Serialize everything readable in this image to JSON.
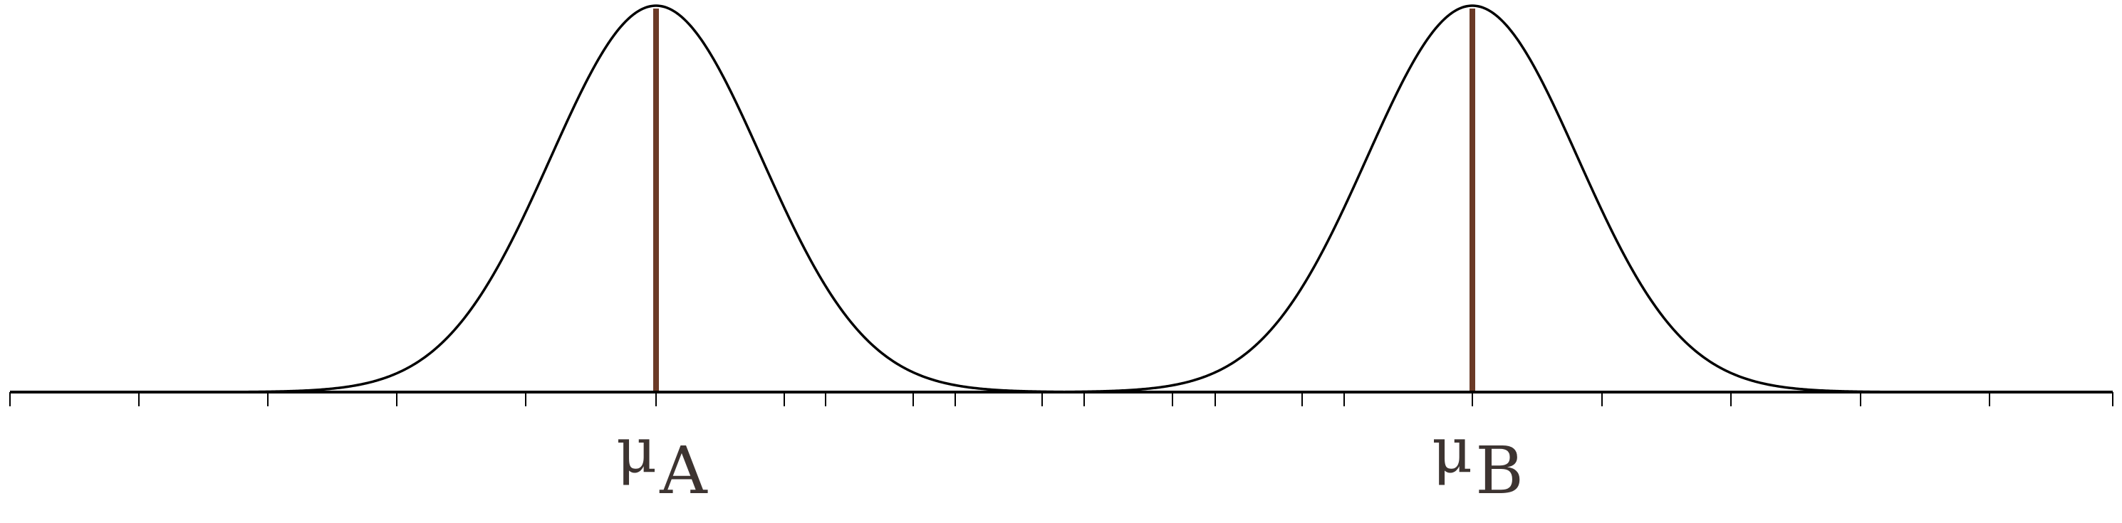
{
  "diagram": {
    "colors": {
      "curve": "#000000",
      "mean_line": "#6b3a26",
      "axis": "#000000",
      "label": "#3d3431"
    },
    "distributions": [
      {
        "label_symbol": "μ",
        "label_subscript": "A"
      },
      {
        "label_symbol": "μ",
        "label_subscript": "B"
      }
    ]
  }
}
